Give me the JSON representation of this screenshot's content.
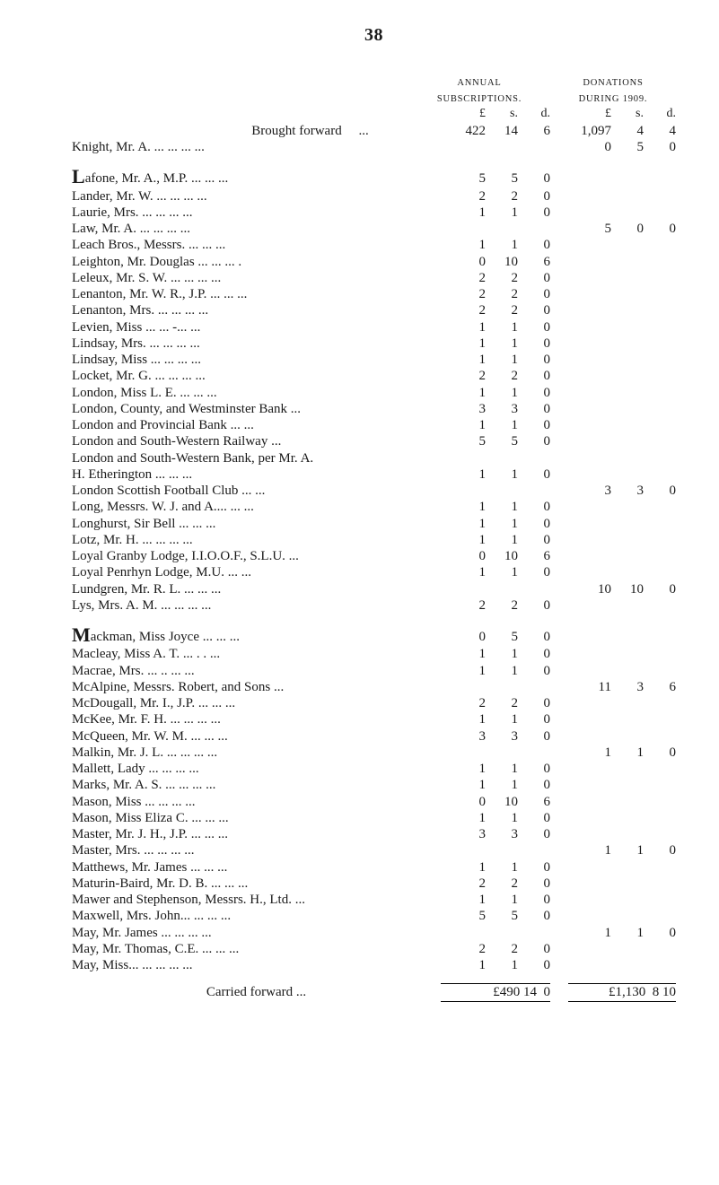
{
  "page_number": "38",
  "headers": {
    "sub_line1": "ANNUAL",
    "sub_line2": "SUBSCRIPTIONS.",
    "don_line1": "DONATIONS",
    "don_line2": "DURING 1909."
  },
  "units": {
    "L": "£",
    "s": "s.",
    "d": "d."
  },
  "brought_forward_label": "Brought forward",
  "knight": "Knight, Mr. A.    ...         ...            ...         ...",
  "entries": [
    {
      "label": "Lafone, Mr. A., M.P.        ...         ...         ...",
      "dropcap": "L",
      "rest": "afone, Mr. A., M.P.        ...         ...         ...",
      "sub": [
        "5",
        "5",
        "0"
      ],
      "don": [
        "",
        "",
        ""
      ]
    },
    {
      "label": "Lander, Mr. W.    ...         ...            ...         ...",
      "sub": [
        "2",
        "2",
        "0"
      ],
      "don": [
        "",
        "",
        ""
      ]
    },
    {
      "label": "Laurie, Mrs.          ...         ...            ...         ...",
      "sub": [
        "1",
        "1",
        "0"
      ],
      "don": [
        "",
        "",
        ""
      ]
    },
    {
      "label": "Law, Mr. A.            ...         ...            ...         ...",
      "sub": [
        "",
        "",
        ""
      ],
      "don": [
        "5",
        "0",
        "0"
      ]
    },
    {
      "label": "Leach Bros., Messrs.          ...            ...         ...",
      "sub": [
        "1",
        "1",
        "0"
      ],
      "don": [
        "",
        "",
        ""
      ]
    },
    {
      "label": "Leighton, Mr. Douglas        ...            ...         ... .",
      "sub": [
        "0",
        "10",
        "6"
      ],
      "don": [
        "",
        "",
        ""
      ]
    },
    {
      "label": "Leleux, Mr. S. W. ...          ...            ...         ...",
      "sub": [
        "2",
        "2",
        "0"
      ],
      "don": [
        "",
        "",
        ""
      ]
    },
    {
      "label": "Lenanton, Mr. W. R., J.P. ...           ...         ...",
      "sub": [
        "2",
        "2",
        "0"
      ],
      "don": [
        "",
        "",
        ""
      ]
    },
    {
      "label": "Lenanton, Mrs.      ...         ...            ...         ...",
      "sub": [
        "2",
        "2",
        "0"
      ],
      "don": [
        "",
        "",
        ""
      ]
    },
    {
      "label": "Levien, Miss           ...         ...           -...         ...",
      "sub": [
        "1",
        "1",
        "0"
      ],
      "don": [
        "",
        "",
        ""
      ]
    },
    {
      "label": "Lindsay, Mrs.         ...         ...            ...         ...",
      "sub": [
        "1",
        "1",
        "0"
      ],
      "don": [
        "",
        "",
        ""
      ]
    },
    {
      "label": "Lindsay, Miss         ...         ...            ...         ...",
      "sub": [
        "1",
        "1",
        "0"
      ],
      "don": [
        "",
        "",
        ""
      ]
    },
    {
      "label": "Locket, Mr. G.        ...         ...            ...         ...",
      "sub": [
        "2",
        "2",
        "0"
      ],
      "don": [
        "",
        "",
        ""
      ]
    },
    {
      "label": "London, Miss L. E.             ...            ...         ...",
      "sub": [
        "1",
        "1",
        "0"
      ],
      "don": [
        "",
        "",
        ""
      ]
    },
    {
      "label": "London, County, and Westminster Bank    ...",
      "sub": [
        "3",
        "3",
        "0"
      ],
      "don": [
        "",
        "",
        ""
      ]
    },
    {
      "label": "London and Provincial Bank          ...         ...",
      "sub": [
        "1",
        "1",
        "0"
      ],
      "don": [
        "",
        "",
        ""
      ]
    },
    {
      "label": "London and South-Western Railway           ...",
      "sub": [
        "5",
        "5",
        "0"
      ],
      "don": [
        "",
        "",
        ""
      ]
    },
    {
      "label": "London and South-Western Bank, per Mr. A.",
      "sub": [
        "",
        "",
        ""
      ],
      "don": [
        "",
        "",
        ""
      ]
    },
    {
      "label": "        H. Etherington          ...            ...         ...",
      "sub": [
        "1",
        "1",
        "0"
      ],
      "don": [
        "",
        "",
        ""
      ]
    },
    {
      "label": "London Scottish Football Club        ...         ...",
      "sub": [
        "",
        "",
        ""
      ],
      "don": [
        "3",
        "3",
        "0"
      ]
    },
    {
      "label": "Long, Messrs. W. J. and A....            ...         ...",
      "sub": [
        "1",
        "1",
        "0"
      ],
      "don": [
        "",
        "",
        ""
      ]
    },
    {
      "label": "Longhurst, Sir Bell             ...            ...         ...",
      "sub": [
        "1",
        "1",
        "0"
      ],
      "don": [
        "",
        "",
        ""
      ]
    },
    {
      "label": "Lotz, Mr. H.             ...        ...            ...         ...",
      "sub": [
        "1",
        "1",
        "0"
      ],
      "don": [
        "",
        "",
        ""
      ]
    },
    {
      "label": "Loyal Granby Lodge, I.I.O.O.F., S.L.U.    ...",
      "sub": [
        "0",
        "10",
        "6"
      ],
      "don": [
        "",
        "",
        ""
      ]
    },
    {
      "label": "Loyal Penrhyn Lodge, M.U.           ...         ...",
      "sub": [
        "1",
        "1",
        "0"
      ],
      "don": [
        "",
        "",
        ""
      ]
    },
    {
      "label": "Lundgren, Mr. R. L.           ...            ...         ...",
      "sub": [
        "",
        "",
        ""
      ],
      "don": [
        "10",
        "10",
        "0"
      ]
    },
    {
      "label": "Lys, Mrs. A. M.   ...           ...            ...         ...",
      "sub": [
        "2",
        "2",
        "0"
      ],
      "don": [
        "",
        "",
        ""
      ]
    }
  ],
  "entries2": [
    {
      "label": "Mackman, Miss Joyce         ...            ...         ...",
      "dropcap": "M",
      "rest": "ackman, Miss Joyce         ...            ...         ...",
      "sub": [
        "0",
        "5",
        "0"
      ],
      "don": [
        "",
        "",
        ""
      ]
    },
    {
      "label": "Macleay, Miss A. T.            ...           . .          ...",
      "sub": [
        "1",
        "1",
        "0"
      ],
      "don": [
        "",
        "",
        ""
      ]
    },
    {
      "label": "Macrae, Mrs.            ...         ..              ...         ...",
      "sub": [
        "1",
        "1",
        "0"
      ],
      "don": [
        "",
        "",
        ""
      ]
    },
    {
      "label": "McAlpine, Messrs. Robert, and Sons           ...",
      "sub": [
        "",
        "",
        ""
      ],
      "don": [
        "11",
        "3",
        "6"
      ]
    },
    {
      "label": "McDougall, Mr. I., J.P.    ...             ...         ...",
      "sub": [
        "2",
        "2",
        "0"
      ],
      "don": [
        "",
        "",
        ""
      ]
    },
    {
      "label": "McKee, Mr. F. H.  ...          ...             ...         ...",
      "sub": [
        "1",
        "1",
        "0"
      ],
      "don": [
        "",
        "",
        ""
      ]
    },
    {
      "label": "McQueen, Mr. W. M.          ...            ...         ...",
      "sub": [
        "3",
        "3",
        "0"
      ],
      "don": [
        "",
        "",
        ""
      ]
    },
    {
      "label": "Malkin, Mr. J. L.  ...           ...            ...         ...",
      "sub": [
        "",
        "",
        ""
      ],
      "don": [
        "1",
        "1",
        "0"
      ]
    },
    {
      "label": "Mallett, Lady           ...         ...            ...         ...",
      "sub": [
        "1",
        "1",
        "0"
      ],
      "don": [
        "",
        "",
        ""
      ]
    },
    {
      "label": "Marks, Mr. A. S.   ...           ...            ...         ...",
      "sub": [
        "1",
        "1",
        "0"
      ],
      "don": [
        "",
        "",
        ""
      ]
    },
    {
      "label": "Mason, Miss             ...         ...            ...         ...",
      "sub": [
        "0",
        "10",
        "6"
      ],
      "don": [
        "",
        "",
        ""
      ]
    },
    {
      "label": "Mason, Miss Eliza C.          ...            ...         ...",
      "sub": [
        "1",
        "1",
        "0"
      ],
      "don": [
        "",
        "",
        ""
      ]
    },
    {
      "label": "Master, Mr. J. H., J.P.       ...            ...         ...",
      "sub": [
        "3",
        "3",
        "0"
      ],
      "don": [
        "",
        "",
        ""
      ]
    },
    {
      "label": "Master, Mrs.              ...        ...            ...         ...",
      "sub": [
        "",
        "",
        ""
      ],
      "don": [
        "1",
        "1",
        "0"
      ]
    },
    {
      "label": "Matthews, Mr. James        ...            ...         ...",
      "sub": [
        "1",
        "1",
        "0"
      ],
      "don": [
        "",
        "",
        ""
      ]
    },
    {
      "label": "Maturin-Baird, Mr. D. B.  ...           ...         ...",
      "sub": [
        "2",
        "2",
        "0"
      ],
      "don": [
        "",
        "",
        ""
      ]
    },
    {
      "label": "Mawer and Stephenson, Messrs. H., Ltd.    ...",
      "sub": [
        "1",
        "1",
        "0"
      ],
      "don": [
        "",
        "",
        ""
      ]
    },
    {
      "label": "Maxwell, Mrs. John...          ...            ...         ...",
      "sub": [
        "5",
        "5",
        "0"
      ],
      "don": [
        "",
        "",
        ""
      ]
    },
    {
      "label": "May, Mr. James    ...           ...            ...         ...",
      "sub": [
        "",
        "",
        ""
      ],
      "don": [
        "1",
        "1",
        "0"
      ]
    },
    {
      "label": "May, Mr. Thomas, C.E.     ...            ...         ...",
      "sub": [
        "2",
        "2",
        "0"
      ],
      "don": [
        "",
        "",
        ""
      ]
    },
    {
      "label": "May, Miss...              ...        ...             ...         ...",
      "sub": [
        "1",
        "1",
        "0"
      ],
      "don": [
        "",
        "",
        ""
      ]
    }
  ],
  "brought_forward": {
    "sub": [
      "422",
      "14",
      "6"
    ],
    "don": [
      "1,097",
      "4",
      "4"
    ]
  },
  "knight_row": {
    "sub": [
      "",
      "",
      ""
    ],
    "don": [
      "0",
      "5",
      "0"
    ]
  },
  "carried_forward_label": "Carried forward            ...",
  "carried_forward": {
    "sub": "£490 14  0",
    "don": "£1,130  8 10"
  }
}
